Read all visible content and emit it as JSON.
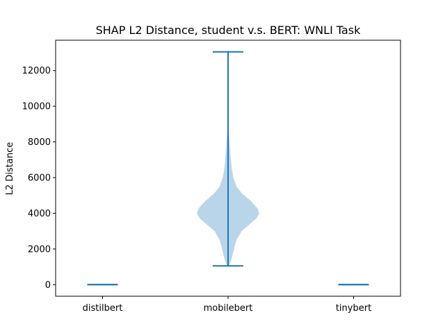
{
  "chart_data": {
    "type": "violin",
    "title": "SHAP L2 Distance, student v.s. BERT: WNLI Task",
    "xlabel": "",
    "ylabel": "L2 Distance",
    "categories": [
      "distilbert",
      "mobilebert",
      "tinybert"
    ],
    "ylim": [
      -650,
      13700
    ],
    "yticks": [
      0,
      2000,
      4000,
      6000,
      8000,
      10000,
      12000
    ],
    "grid": false,
    "colors": {
      "body": "#b9d5ea",
      "line": "#1f77b4"
    },
    "violins": [
      {
        "category": "distilbert",
        "min": 0,
        "max": 0,
        "profile": []
      },
      {
        "category": "mobilebert",
        "min": 1050,
        "max": 13050,
        "profile": [
          [
            1050,
            0.03
          ],
          [
            1200,
            0.07
          ],
          [
            1500,
            0.12
          ],
          [
            2000,
            0.19
          ],
          [
            2500,
            0.27
          ],
          [
            3000,
            0.43
          ],
          [
            3400,
            0.7
          ],
          [
            3700,
            0.9
          ],
          [
            4000,
            1.0
          ],
          [
            4300,
            0.93
          ],
          [
            4700,
            0.72
          ],
          [
            5100,
            0.45
          ],
          [
            5500,
            0.27
          ],
          [
            6000,
            0.17
          ],
          [
            6500,
            0.12
          ],
          [
            7000,
            0.09
          ],
          [
            7500,
            0.07
          ],
          [
            8000,
            0.05
          ],
          [
            8500,
            0.03
          ],
          [
            9000,
            0.0
          ]
        ]
      },
      {
        "category": "tinybert",
        "min": 0,
        "max": 0,
        "profile": []
      }
    ]
  }
}
